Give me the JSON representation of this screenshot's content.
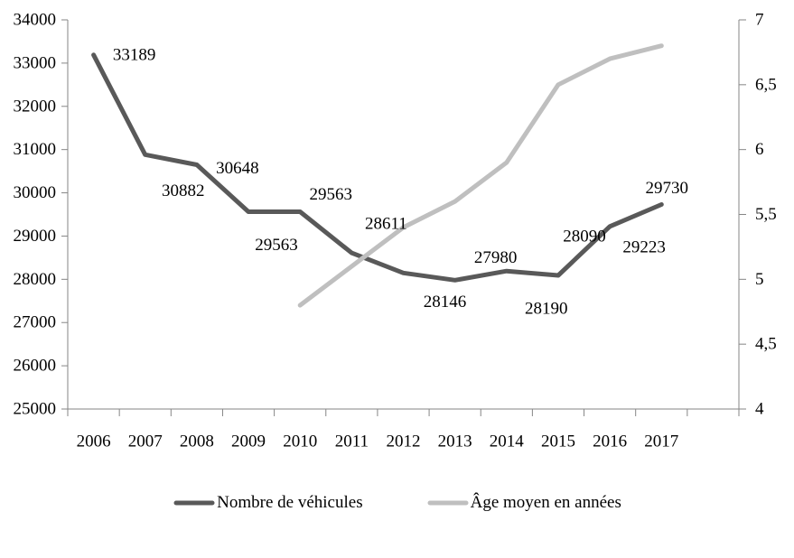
{
  "chart_data": {
    "type": "line",
    "categories": [
      "2006",
      "2007",
      "2008",
      "2009",
      "2010",
      "2011",
      "2012",
      "2013",
      "2014",
      "2015",
      "2016",
      "2017"
    ],
    "series": [
      {
        "name": "Nombre de véhicules",
        "axis": "left",
        "color": "#595959",
        "values": [
          33189,
          30882,
          30648,
          29563,
          29563,
          28611,
          28146,
          27980,
          28190,
          28090,
          29223,
          29730
        ],
        "data_labels": true,
        "label_offsets": [
          [
            45,
            0
          ],
          [
            42,
            40
          ],
          [
            45,
            4
          ],
          [
            31,
            37
          ],
          [
            34,
            -19
          ],
          [
            38,
            -32
          ],
          [
            46,
            32
          ],
          [
            45,
            -25
          ],
          [
            44,
            42
          ],
          [
            29,
            -43
          ],
          [
            38,
            23
          ],
          [
            6,
            -18
          ]
        ]
      },
      {
        "name": "Âge moyen en années",
        "axis": "right",
        "color": "#bfbfbf",
        "values": [
          null,
          null,
          null,
          null,
          4.8,
          5.1,
          5.4,
          5.6,
          5.9,
          6.5,
          6.7,
          6.8
        ],
        "data_labels": false
      }
    ],
    "left_axis": {
      "min": 25000,
      "max": 34000,
      "step": 1000,
      "tick_labels": [
        "34000",
        "33000",
        "32000",
        "31000",
        "30000",
        "29000",
        "28000",
        "27000",
        "26000",
        "25000"
      ]
    },
    "right_axis": {
      "min": 4,
      "max": 7,
      "step": 0.5,
      "tick_labels": [
        "7",
        "6,5",
        "6",
        "5,5",
        "5",
        "4,5",
        "4"
      ]
    },
    "axis_color": "#868686",
    "grid": false,
    "legend_position": "bottom"
  }
}
